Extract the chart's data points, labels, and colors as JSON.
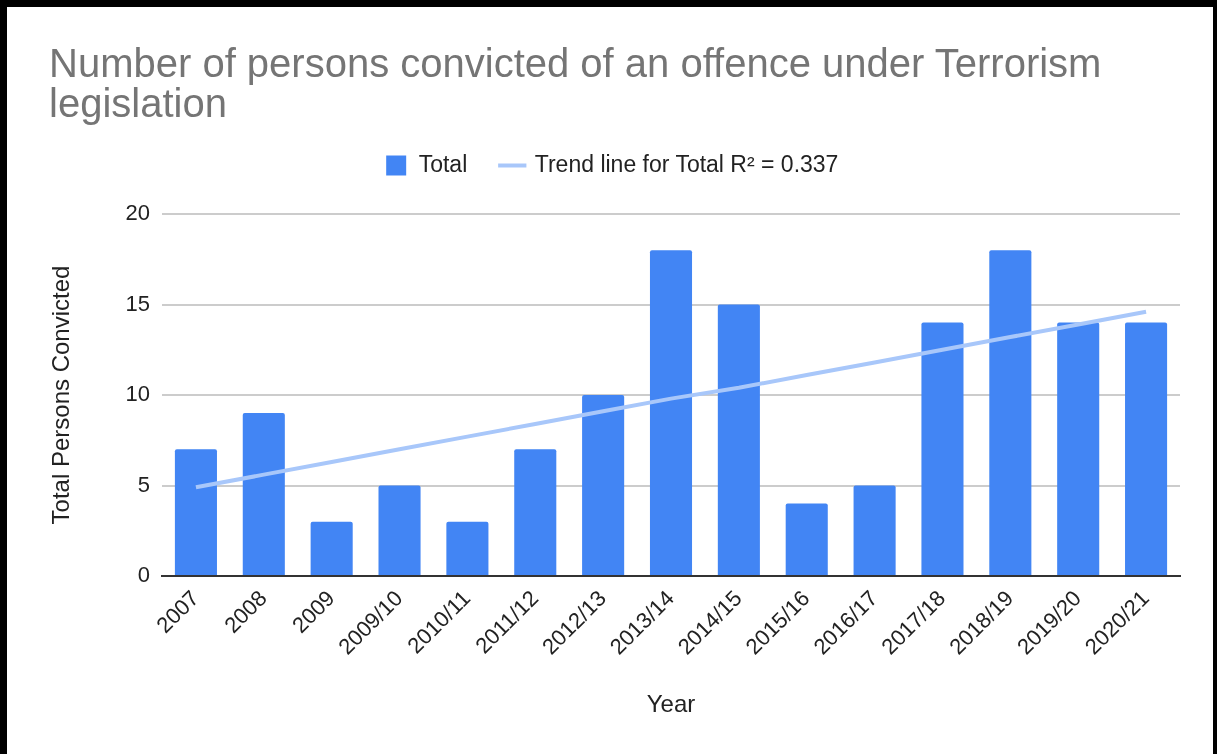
{
  "chart_data": {
    "type": "bar",
    "title": "Number of persons convicted of an offence under Terrorism legislation",
    "xlabel": "Year",
    "ylabel": "Total Persons Convicted",
    "categories": [
      "2007",
      "2008",
      "2009",
      "2009/10",
      "2010/11",
      "2011/12",
      "2012/13",
      "2013/14",
      "2014/15",
      "2015/16",
      "2016/17",
      "2017/18",
      "2018/19",
      "2019/20",
      "2020/21"
    ],
    "series": [
      {
        "name": "Total",
        "color": "#4285f4",
        "values": [
          7,
          9,
          3,
          5,
          3,
          7,
          10,
          18,
          15,
          4,
          5,
          14,
          18,
          14,
          14
        ]
      },
      {
        "name": "Trend line for Total R² = 0.337",
        "type": "line",
        "color": "#a8c7fa",
        "values": [
          4.9,
          5.6,
          6.3,
          7.0,
          7.7,
          8.4,
          9.1,
          9.8,
          10.4,
          11.1,
          11.8,
          12.5,
          13.2,
          13.9,
          14.6
        ]
      }
    ],
    "ylim": [
      0,
      20
    ],
    "yticks": [
      0,
      5,
      10,
      15,
      20
    ],
    "grid": "y",
    "legend": "top",
    "marker": "none"
  }
}
